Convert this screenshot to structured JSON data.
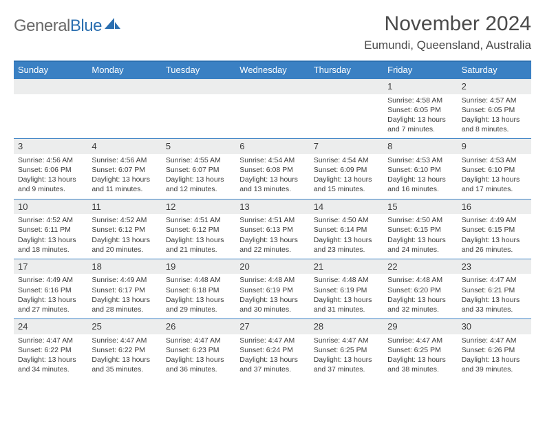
{
  "logo": {
    "word1": "General",
    "word2": "Blue"
  },
  "title": "November 2024",
  "location": "Eumundi, Queensland, Australia",
  "colors": {
    "header_bg": "#3a80c3",
    "header_border": "#2b6fb0",
    "daynum_bg": "#eceded",
    "text": "#3b3b3b",
    "logo_gray": "#6a6a6a",
    "logo_blue": "#2b6fb0"
  },
  "dayNames": [
    "Sunday",
    "Monday",
    "Tuesday",
    "Wednesday",
    "Thursday",
    "Friday",
    "Saturday"
  ],
  "weeks": [
    [
      null,
      null,
      null,
      null,
      null,
      {
        "n": "1",
        "sr": "4:58 AM",
        "ss": "6:05 PM",
        "dl": "13 hours and 7 minutes."
      },
      {
        "n": "2",
        "sr": "4:57 AM",
        "ss": "6:05 PM",
        "dl": "13 hours and 8 minutes."
      }
    ],
    [
      {
        "n": "3",
        "sr": "4:56 AM",
        "ss": "6:06 PM",
        "dl": "13 hours and 9 minutes."
      },
      {
        "n": "4",
        "sr": "4:56 AM",
        "ss": "6:07 PM",
        "dl": "13 hours and 11 minutes."
      },
      {
        "n": "5",
        "sr": "4:55 AM",
        "ss": "6:07 PM",
        "dl": "13 hours and 12 minutes."
      },
      {
        "n": "6",
        "sr": "4:54 AM",
        "ss": "6:08 PM",
        "dl": "13 hours and 13 minutes."
      },
      {
        "n": "7",
        "sr": "4:54 AM",
        "ss": "6:09 PM",
        "dl": "13 hours and 15 minutes."
      },
      {
        "n": "8",
        "sr": "4:53 AM",
        "ss": "6:10 PM",
        "dl": "13 hours and 16 minutes."
      },
      {
        "n": "9",
        "sr": "4:53 AM",
        "ss": "6:10 PM",
        "dl": "13 hours and 17 minutes."
      }
    ],
    [
      {
        "n": "10",
        "sr": "4:52 AM",
        "ss": "6:11 PM",
        "dl": "13 hours and 18 minutes."
      },
      {
        "n": "11",
        "sr": "4:52 AM",
        "ss": "6:12 PM",
        "dl": "13 hours and 20 minutes."
      },
      {
        "n": "12",
        "sr": "4:51 AM",
        "ss": "6:12 PM",
        "dl": "13 hours and 21 minutes."
      },
      {
        "n": "13",
        "sr": "4:51 AM",
        "ss": "6:13 PM",
        "dl": "13 hours and 22 minutes."
      },
      {
        "n": "14",
        "sr": "4:50 AM",
        "ss": "6:14 PM",
        "dl": "13 hours and 23 minutes."
      },
      {
        "n": "15",
        "sr": "4:50 AM",
        "ss": "6:15 PM",
        "dl": "13 hours and 24 minutes."
      },
      {
        "n": "16",
        "sr": "4:49 AM",
        "ss": "6:15 PM",
        "dl": "13 hours and 26 minutes."
      }
    ],
    [
      {
        "n": "17",
        "sr": "4:49 AM",
        "ss": "6:16 PM",
        "dl": "13 hours and 27 minutes."
      },
      {
        "n": "18",
        "sr": "4:49 AM",
        "ss": "6:17 PM",
        "dl": "13 hours and 28 minutes."
      },
      {
        "n": "19",
        "sr": "4:48 AM",
        "ss": "6:18 PM",
        "dl": "13 hours and 29 minutes."
      },
      {
        "n": "20",
        "sr": "4:48 AM",
        "ss": "6:19 PM",
        "dl": "13 hours and 30 minutes."
      },
      {
        "n": "21",
        "sr": "4:48 AM",
        "ss": "6:19 PM",
        "dl": "13 hours and 31 minutes."
      },
      {
        "n": "22",
        "sr": "4:48 AM",
        "ss": "6:20 PM",
        "dl": "13 hours and 32 minutes."
      },
      {
        "n": "23",
        "sr": "4:47 AM",
        "ss": "6:21 PM",
        "dl": "13 hours and 33 minutes."
      }
    ],
    [
      {
        "n": "24",
        "sr": "4:47 AM",
        "ss": "6:22 PM",
        "dl": "13 hours and 34 minutes."
      },
      {
        "n": "25",
        "sr": "4:47 AM",
        "ss": "6:22 PM",
        "dl": "13 hours and 35 minutes."
      },
      {
        "n": "26",
        "sr": "4:47 AM",
        "ss": "6:23 PM",
        "dl": "13 hours and 36 minutes."
      },
      {
        "n": "27",
        "sr": "4:47 AM",
        "ss": "6:24 PM",
        "dl": "13 hours and 37 minutes."
      },
      {
        "n": "28",
        "sr": "4:47 AM",
        "ss": "6:25 PM",
        "dl": "13 hours and 37 minutes."
      },
      {
        "n": "29",
        "sr": "4:47 AM",
        "ss": "6:25 PM",
        "dl": "13 hours and 38 minutes."
      },
      {
        "n": "30",
        "sr": "4:47 AM",
        "ss": "6:26 PM",
        "dl": "13 hours and 39 minutes."
      }
    ]
  ],
  "labels": {
    "sunrise": "Sunrise: ",
    "sunset": "Sunset: ",
    "daylight": "Daylight: "
  }
}
